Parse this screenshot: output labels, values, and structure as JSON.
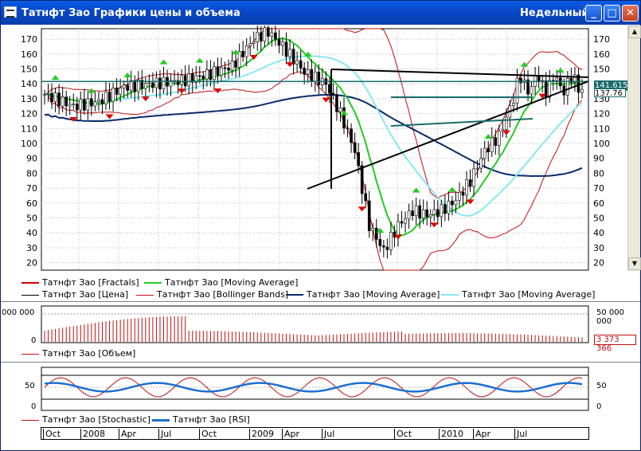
{
  "window": {
    "title": "Татнфт Зао Графики цены и объема",
    "period": "Недельный",
    "buttons": {
      "minimize": "_",
      "maximize": "□",
      "close": "✕"
    }
  },
  "price_panel": {
    "y_ticks": [
      20,
      30,
      40,
      50,
      60,
      70,
      80,
      90,
      100,
      110,
      120,
      130,
      140,
      150,
      160,
      170
    ],
    "last_price_badge": "141.615",
    "second_badge": "137.76",
    "legend": [
      {
        "label": "Татнфт Зао [Fractals]",
        "color": "#d00000"
      },
      {
        "label": "Татнфт Зао [Moving Average]",
        "color": "#22cc22"
      },
      {
        "label": "Татнфт Зао [Цена]",
        "color": "#000000"
      },
      {
        "label": "Татнфт Зао [Bollinger Bands]",
        "color": "#c01010"
      },
      {
        "label": "Татнфт Зао [Moving Average]",
        "color": "#0a2a6a"
      },
      {
        "label": "Татнфт Зао [Moving Average]",
        "color": "#88e8f0"
      }
    ]
  },
  "volume_panel": {
    "left_tick_top": "000 000",
    "left_tick_zero": "0",
    "right_tick_top": "50 000 000",
    "right_tick_zero": "0",
    "value_badge": "3 373 366",
    "legend": "Татнфт Зао [Объем]"
  },
  "oscillator_panel": {
    "ticks": [
      "50",
      "0"
    ],
    "legend": [
      {
        "label": "Татнфт Зао [Stochastic]",
        "color": "#c01010"
      },
      {
        "label": "Татнфт Зао [RSI]",
        "color": "#1c6fd0"
      }
    ]
  },
  "time_axis": [
    "Oct",
    "2008",
    "Apr",
    "Jul",
    "Oct",
    "2009",
    "Apr",
    "Jul",
    "Oct",
    "2010",
    "Apr",
    "Jul"
  ],
  "colors": {
    "titlebar": "#0a5ce6",
    "price_line": "#1a6b6b",
    "badge": "#1a6b6b"
  }
}
